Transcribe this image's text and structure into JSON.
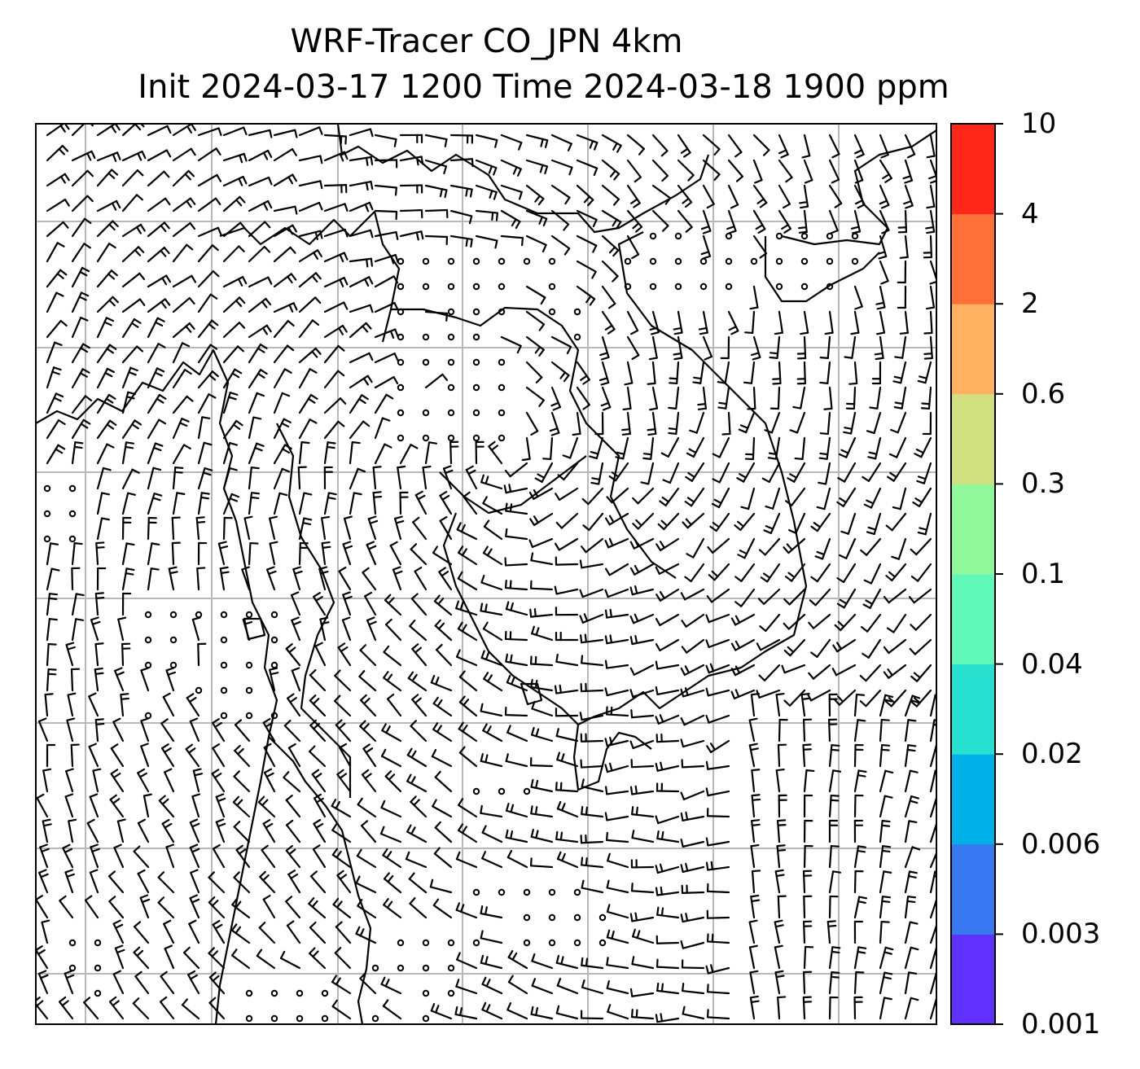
{
  "title": {
    "line1": "WRF-Tracer CO_JPN 4km",
    "line2": "Init 2024-03-17 1200 Time 2024-03-18 1900 ppm"
  },
  "colorbar": {
    "levels": [
      "0.001",
      "0.003",
      "0.006",
      "0.02",
      "0.04",
      "0.1",
      "0.3",
      "0.6",
      "2",
      "4",
      "10"
    ],
    "colors": [
      "#6030ff",
      "#3878f0",
      "#00b0e8",
      "#28e0d0",
      "#60f8b8",
      "#90f898",
      "#d0e080",
      "#ffb060",
      "#ff7038",
      "#ff2818"
    ]
  },
  "map": {
    "background": "#ffffff",
    "gridline_color": "#b8b8b8",
    "coastline_color": "#000000",
    "barb_color": "#000000"
  }
}
